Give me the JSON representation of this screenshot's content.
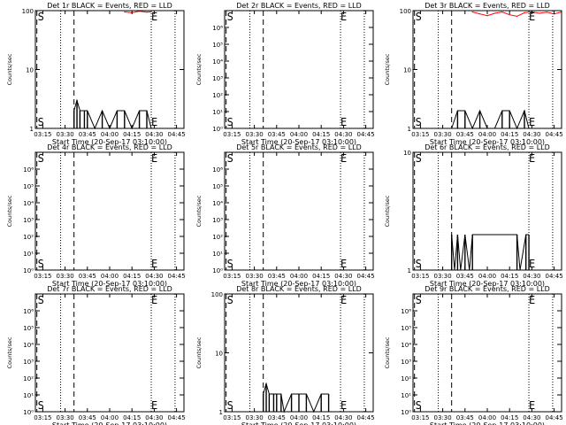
{
  "colors": {
    "events": "#000000",
    "lld": "#ff0000",
    "background": "#ffffff"
  },
  "chart_data": [
    {
      "type": "line",
      "title": "Det 1r BLACK = Events, RED = LLD",
      "ylabel": "Counts/sec",
      "xlabel": "Start Time (20-Sep-17 03:10:00)",
      "yscale": "log",
      "ylim": [
        1,
        100
      ],
      "xlim_min": [
        0,
        100
      ],
      "yticks": [
        {
          "v": 1,
          "label": "1"
        },
        {
          "v": 10,
          "label": "10"
        },
        {
          "v": 100,
          "label": "100"
        }
      ],
      "xticks": [
        {
          "v": 5,
          "label": "03:15"
        },
        {
          "v": 20,
          "label": "03:30"
        },
        {
          "v": 35,
          "label": "03:45"
        },
        {
          "v": 50,
          "label": "04:00"
        },
        {
          "v": 65,
          "label": "04:15"
        },
        {
          "v": 80,
          "label": "04:30"
        },
        {
          "v": 95,
          "label": "04:45"
        }
      ],
      "markers": [
        {
          "v": 1,
          "label": "S"
        },
        {
          "v": 78,
          "label": "E"
        }
      ],
      "dashed_lines": [
        1,
        26
      ],
      "dotted_lines": [
        17,
        78,
        94
      ],
      "events_series": {
        "name": "Events",
        "x": [
          26,
          28,
          30,
          33,
          35,
          40,
          45,
          50,
          55,
          60,
          65,
          70,
          75,
          78
        ],
        "y": [
          2,
          3,
          2,
          2,
          2,
          1,
          2,
          1,
          2,
          2,
          1,
          2,
          2,
          1
        ]
      },
      "lld_series": {
        "name": "LLD",
        "x": [
          60,
          65,
          70,
          75,
          78
        ],
        "y": [
          95,
          92,
          98,
          94,
          96
        ]
      }
    },
    {
      "type": "line",
      "title": "Det 2r BLACK = Events, RED = LLD",
      "ylabel": "Counts/sec",
      "xlabel": "Start Time (20-Sep-17 03:10:00)",
      "yscale": "log",
      "ylim": [
        1,
        10000000
      ],
      "xlim_min": [
        0,
        100
      ],
      "yticks": [
        {
          "v": 1,
          "label": "10⁰"
        },
        {
          "v": 10,
          "label": "10¹"
        },
        {
          "v": 100,
          "label": "10²"
        },
        {
          "v": 1000,
          "label": "10³"
        },
        {
          "v": 10000,
          "label": "10⁴"
        },
        {
          "v": 100000,
          "label": "10⁵"
        },
        {
          "v": 1000000,
          "label": "10⁶"
        }
      ],
      "xticks": [
        {
          "v": 5,
          "label": "03:15"
        },
        {
          "v": 20,
          "label": "03:30"
        },
        {
          "v": 35,
          "label": "03:45"
        },
        {
          "v": 50,
          "label": "04:00"
        },
        {
          "v": 65,
          "label": "04:15"
        },
        {
          "v": 80,
          "label": "04:30"
        },
        {
          "v": 95,
          "label": "04:45"
        }
      ],
      "markers": [
        {
          "v": 1,
          "label": "S"
        },
        {
          "v": 78,
          "label": "E"
        }
      ],
      "dashed_lines": [
        1,
        26
      ],
      "dotted_lines": [
        17,
        78,
        94
      ],
      "events_series": {
        "name": "Events",
        "x": [],
        "y": []
      },
      "lld_series": {
        "name": "LLD",
        "x": [],
        "y": []
      }
    },
    {
      "type": "line",
      "title": "Det 3r BLACK = Events, RED = LLD",
      "ylabel": "Counts/sec",
      "xlabel": "Start Time (20-Sep-17 03:10:00)",
      "yscale": "log",
      "ylim": [
        1,
        100
      ],
      "xlim_min": [
        0,
        100
      ],
      "yticks": [
        {
          "v": 1,
          "label": "1"
        },
        {
          "v": 10,
          "label": "10"
        },
        {
          "v": 100,
          "label": "100"
        }
      ],
      "xticks": [
        {
          "v": 5,
          "label": "03:15"
        },
        {
          "v": 20,
          "label": "03:30"
        },
        {
          "v": 35,
          "label": "03:45"
        },
        {
          "v": 50,
          "label": "04:00"
        },
        {
          "v": 65,
          "label": "04:15"
        },
        {
          "v": 80,
          "label": "04:30"
        },
        {
          "v": 95,
          "label": "04:45"
        }
      ],
      "markers": [
        {
          "v": 1,
          "label": "S"
        },
        {
          "v": 78,
          "label": "E"
        }
      ],
      "dashed_lines": [
        1,
        26
      ],
      "dotted_lines": [
        17,
        78,
        94
      ],
      "events_series": {
        "name": "Events",
        "x": [
          26,
          30,
          35,
          40,
          45,
          50,
          55,
          60,
          65,
          70,
          75,
          78
        ],
        "y": [
          1,
          2,
          2,
          1,
          2,
          1,
          1,
          2,
          2,
          1,
          2,
          1
        ]
      },
      "lld_series": {
        "name": "LLD",
        "x": [
          40,
          45,
          50,
          55,
          60,
          65,
          70,
          75,
          80,
          85,
          90,
          95,
          100
        ],
        "y": [
          95,
          88,
          82,
          90,
          95,
          85,
          80,
          92,
          96,
          90,
          94,
          88,
          95
        ]
      }
    },
    {
      "type": "line",
      "title": "Det 4r BLACK = Events, RED = LLD",
      "ylabel": "Counts/sec",
      "xlabel": "Start Time (20-Sep-17 03:10:00)",
      "yscale": "log",
      "ylim": [
        1,
        10000000
      ],
      "xlim_min": [
        0,
        100
      ],
      "yticks": [
        {
          "v": 1,
          "label": "10⁰"
        },
        {
          "v": 10,
          "label": "10¹"
        },
        {
          "v": 100,
          "label": "10²"
        },
        {
          "v": 1000,
          "label": "10³"
        },
        {
          "v": 10000,
          "label": "10⁴"
        },
        {
          "v": 100000,
          "label": "10⁵"
        },
        {
          "v": 1000000,
          "label": "10⁶"
        }
      ],
      "xticks": [
        {
          "v": 5,
          "label": "03:15"
        },
        {
          "v": 20,
          "label": "03:30"
        },
        {
          "v": 35,
          "label": "03:45"
        },
        {
          "v": 50,
          "label": "04:00"
        },
        {
          "v": 65,
          "label": "04:15"
        },
        {
          "v": 80,
          "label": "04:30"
        },
        {
          "v": 95,
          "label": "04:45"
        }
      ],
      "markers": [
        {
          "v": 1,
          "label": "S"
        },
        {
          "v": 78,
          "label": "E"
        }
      ],
      "dashed_lines": [
        1,
        26
      ],
      "dotted_lines": [
        17,
        78,
        94
      ],
      "events_series": {
        "name": "Events",
        "x": [],
        "y": []
      },
      "lld_series": {
        "name": "LLD",
        "x": [],
        "y": []
      }
    },
    {
      "type": "line",
      "title": "Det 5r BLACK = Events, RED = LLD",
      "ylabel": "Counts/sec",
      "xlabel": "Start Time (20-Sep-17 03:10:00)",
      "yscale": "log",
      "ylim": [
        1,
        10000000
      ],
      "xlim_min": [
        0,
        100
      ],
      "yticks": [
        {
          "v": 1,
          "label": "10⁰"
        },
        {
          "v": 10,
          "label": "10¹"
        },
        {
          "v": 100,
          "label": "10²"
        },
        {
          "v": 1000,
          "label": "10³"
        },
        {
          "v": 10000,
          "label": "10⁴"
        },
        {
          "v": 100000,
          "label": "10⁵"
        },
        {
          "v": 1000000,
          "label": "10⁶"
        }
      ],
      "xticks": [
        {
          "v": 5,
          "label": "03:15"
        },
        {
          "v": 20,
          "label": "03:30"
        },
        {
          "v": 35,
          "label": "03:45"
        },
        {
          "v": 50,
          "label": "04:00"
        },
        {
          "v": 65,
          "label": "04:15"
        },
        {
          "v": 80,
          "label": "04:30"
        },
        {
          "v": 95,
          "label": "04:45"
        }
      ],
      "markers": [
        {
          "v": 1,
          "label": "S"
        },
        {
          "v": 78,
          "label": "E"
        }
      ],
      "dashed_lines": [
        1,
        26
      ],
      "dotted_lines": [
        17,
        78,
        94
      ],
      "events_series": {
        "name": "Events",
        "x": [],
        "y": []
      },
      "lld_series": {
        "name": "LLD",
        "x": [],
        "y": []
      }
    },
    {
      "type": "line",
      "title": "Det 6r BLACK = Events, RED = LLD",
      "ylabel": "Counts/sec",
      "xlabel": "Start Time (20-Sep-17 03:10:00)",
      "yscale": "log",
      "ylim": [
        1,
        10
      ],
      "xlim_min": [
        0,
        100
      ],
      "yticks": [
        {
          "v": 1,
          "label": "1"
        },
        {
          "v": 10,
          "label": "10"
        }
      ],
      "xticks": [
        {
          "v": 5,
          "label": "03:15"
        },
        {
          "v": 20,
          "label": "03:30"
        },
        {
          "v": 35,
          "label": "03:45"
        },
        {
          "v": 50,
          "label": "04:00"
        },
        {
          "v": 65,
          "label": "04:15"
        },
        {
          "v": 80,
          "label": "04:30"
        },
        {
          "v": 95,
          "label": "04:45"
        }
      ],
      "markers": [
        {
          "v": 1,
          "label": "S"
        },
        {
          "v": 78,
          "label": "E"
        }
      ],
      "dashed_lines": [
        1,
        26
      ],
      "dotted_lines": [
        17,
        78,
        94
      ],
      "events_series": {
        "name": "Events",
        "x": [
          26,
          28,
          30,
          32,
          35,
          38,
          40,
          70,
          72,
          76,
          78
        ],
        "y": [
          2,
          1,
          2,
          1,
          2,
          1,
          2,
          2,
          1,
          2,
          2
        ]
      },
      "lld_series": {
        "name": "LLD",
        "x": [],
        "y": []
      }
    },
    {
      "type": "line",
      "title": "Det 7r BLACK = Events, RED = LLD",
      "ylabel": "Counts/sec",
      "xlabel": "Start Time (20-Sep-17 03:10:00)",
      "yscale": "log",
      "ylim": [
        1,
        10000000
      ],
      "xlim_min": [
        0,
        100
      ],
      "yticks": [
        {
          "v": 1,
          "label": "10⁰"
        },
        {
          "v": 10,
          "label": "10¹"
        },
        {
          "v": 100,
          "label": "10²"
        },
        {
          "v": 1000,
          "label": "10³"
        },
        {
          "v": 10000,
          "label": "10⁴"
        },
        {
          "v": 100000,
          "label": "10⁵"
        },
        {
          "v": 1000000,
          "label": "10⁶"
        }
      ],
      "xticks": [
        {
          "v": 5,
          "label": "03:15"
        },
        {
          "v": 20,
          "label": "03:30"
        },
        {
          "v": 35,
          "label": "03:45"
        },
        {
          "v": 50,
          "label": "04:00"
        },
        {
          "v": 65,
          "label": "04:15"
        },
        {
          "v": 80,
          "label": "04:30"
        },
        {
          "v": 95,
          "label": "04:45"
        }
      ],
      "markers": [
        {
          "v": 1,
          "label": "S"
        },
        {
          "v": 78,
          "label": "E"
        }
      ],
      "dashed_lines": [
        1,
        26
      ],
      "dotted_lines": [
        17,
        78,
        94
      ],
      "events_series": {
        "name": "Events",
        "x": [],
        "y": []
      },
      "lld_series": {
        "name": "LLD",
        "x": [],
        "y": []
      }
    },
    {
      "type": "line",
      "title": "Det 8r BLACK = Events, RED = LLD",
      "ylabel": "Counts/sec",
      "xlabel": "Start Time (20-Sep-17 03:10:00)",
      "yscale": "log",
      "ylim": [
        1,
        100
      ],
      "xlim_min": [
        0,
        100
      ],
      "yticks": [
        {
          "v": 1,
          "label": "1"
        },
        {
          "v": 10,
          "label": "10"
        },
        {
          "v": 100,
          "label": "100"
        }
      ],
      "xticks": [
        {
          "v": 5,
          "label": "03:15"
        },
        {
          "v": 20,
          "label": "03:30"
        },
        {
          "v": 35,
          "label": "03:45"
        },
        {
          "v": 50,
          "label": "04:00"
        },
        {
          "v": 65,
          "label": "04:15"
        },
        {
          "v": 80,
          "label": "04:30"
        },
        {
          "v": 95,
          "label": "04:45"
        }
      ],
      "markers": [
        {
          "v": 1,
          "label": "S"
        },
        {
          "v": 78,
          "label": "E"
        }
      ],
      "dashed_lines": [
        1,
        26
      ],
      "dotted_lines": [
        17,
        78,
        94
      ],
      "events_series": {
        "name": "Events",
        "x": [
          26,
          28,
          30,
          33,
          35,
          38,
          40,
          45,
          50,
          55,
          60,
          65,
          70
        ],
        "y": [
          2,
          3,
          2,
          2,
          2,
          2,
          1,
          2,
          2,
          2,
          1,
          2,
          2
        ]
      },
      "lld_series": {
        "name": "LLD",
        "x": [],
        "y": []
      }
    },
    {
      "type": "line",
      "title": "Det 9r BLACK = Events, RED = LLD",
      "ylabel": "Counts/sec",
      "xlabel": "Start Time (20-Sep-17 03:10:00)",
      "yscale": "log",
      "ylim": [
        1,
        10000000
      ],
      "xlim_min": [
        0,
        100
      ],
      "yticks": [
        {
          "v": 1,
          "label": "10⁰"
        },
        {
          "v": 10,
          "label": "10¹"
        },
        {
          "v": 100,
          "label": "10²"
        },
        {
          "v": 1000,
          "label": "10³"
        },
        {
          "v": 10000,
          "label": "10⁴"
        },
        {
          "v": 100000,
          "label": "10⁵"
        },
        {
          "v": 1000000,
          "label": "10⁶"
        }
      ],
      "xticks": [
        {
          "v": 5,
          "label": "03:15"
        },
        {
          "v": 20,
          "label": "03:30"
        },
        {
          "v": 35,
          "label": "03:45"
        },
        {
          "v": 50,
          "label": "04:00"
        },
        {
          "v": 65,
          "label": "04:15"
        },
        {
          "v": 80,
          "label": "04:30"
        },
        {
          "v": 95,
          "label": "04:45"
        }
      ],
      "markers": [
        {
          "v": 1,
          "label": "S"
        },
        {
          "v": 78,
          "label": "E"
        }
      ],
      "dashed_lines": [
        1,
        26
      ],
      "dotted_lines": [
        17,
        78,
        94
      ],
      "events_series": {
        "name": "Events",
        "x": [],
        "y": []
      },
      "lld_series": {
        "name": "LLD",
        "x": [],
        "y": []
      }
    }
  ]
}
